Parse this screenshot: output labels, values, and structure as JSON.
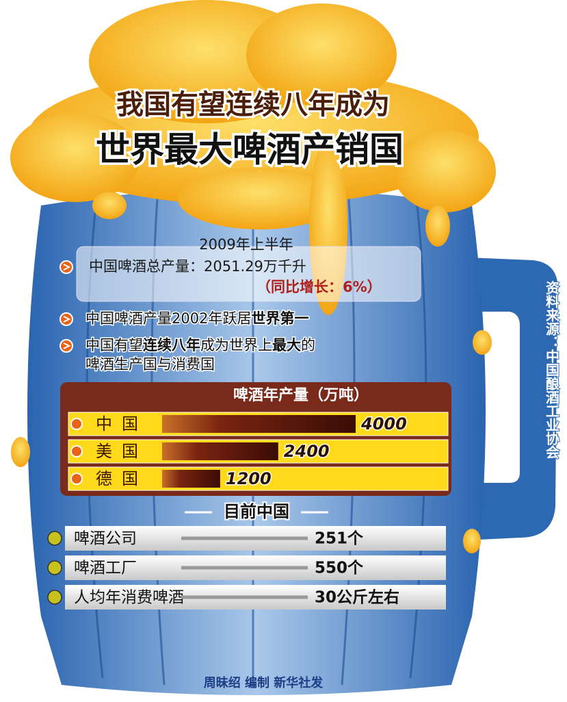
{
  "header": {
    "title_line1": "我国有望连续八年成为",
    "title_line2": "世界最大啤酒产销国"
  },
  "info": {
    "period": "2009年上半年",
    "output": "中国啤酒总产量：2051.29万千升",
    "growth": "（同比增长：6%）"
  },
  "facts": [
    [
      {
        "text": "中国啤酒产量2002年跃居"
      },
      {
        "text": "世界第一",
        "bold": true
      }
    ],
    [
      {
        "text": "中国有望"
      },
      {
        "text": "连续八年",
        "bold": true
      },
      {
        "text": "成为世界上"
      },
      {
        "text": "最大",
        "bold": true
      },
      {
        "text": "的"
      }
    ],
    [
      {
        "text": "啤酒生产国与消费国"
      }
    ]
  ],
  "chart_data": {
    "type": "bar",
    "orientation": "horizontal",
    "title": "啤酒年产量（万吨）",
    "categories": [
      "中国",
      "美国",
      "德国"
    ],
    "values": [
      4000,
      2400,
      1200
    ]
  },
  "stats": {
    "title": "目前中国",
    "rows": [
      [
        "啤酒公司",
        "251个"
      ],
      [
        "啤酒工厂",
        "550个"
      ],
      [
        "人均年消费啤酒",
        "30公斤左右"
      ]
    ]
  },
  "source": "资料来源：中国酿酒工业协会",
  "credit": "周昧绍 编制 新华社发"
}
